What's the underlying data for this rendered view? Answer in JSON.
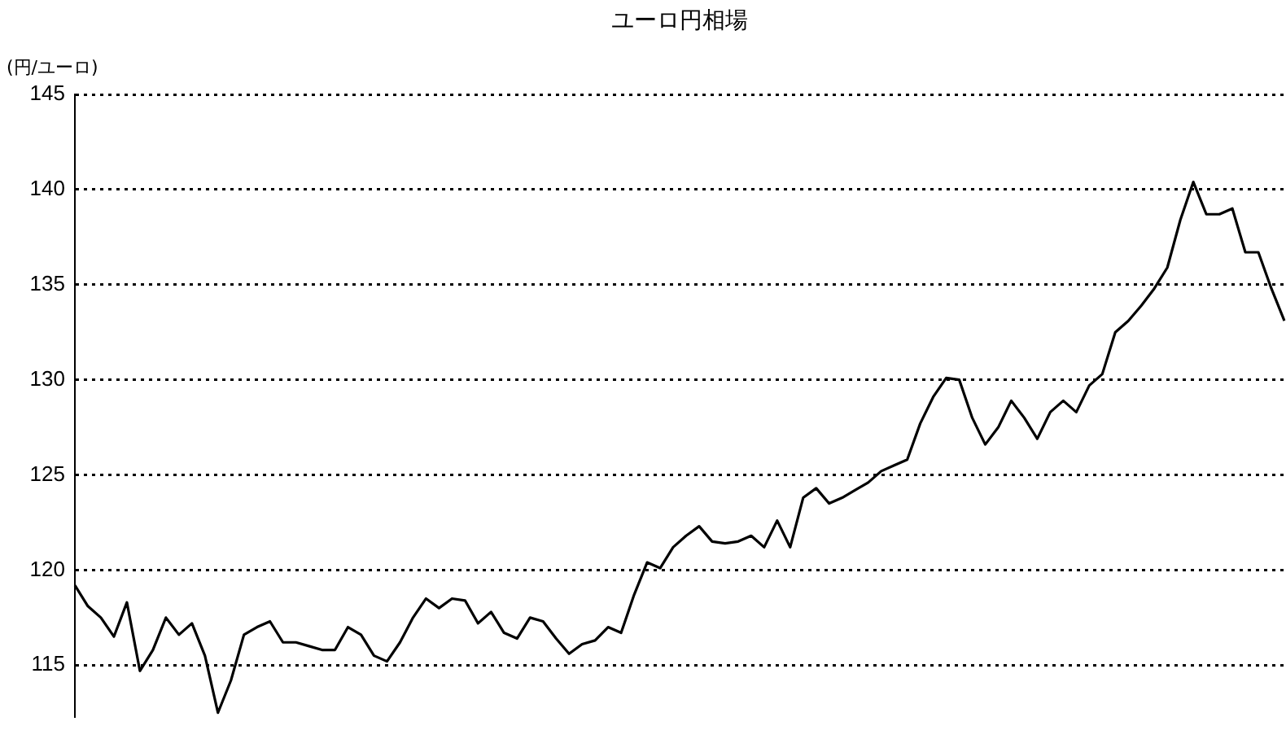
{
  "chart_data": {
    "type": "line",
    "title": "ユーロ円相場",
    "ylabel": "(円/ユーロ)",
    "categories": [
      null,
      null,
      null,
      null,
      null,
      null,
      null,
      null,
      null,
      null,
      null,
      null,
      null,
      null,
      null,
      null,
      null,
      null,
      null,
      null,
      null,
      null,
      null,
      null,
      null,
      null,
      null,
      null,
      null,
      null,
      null,
      null,
      null,
      null,
      null,
      null,
      null,
      null,
      null,
      null,
      null,
      null,
      null,
      null,
      null,
      null,
      null,
      null,
      null,
      null,
      null,
      null,
      null,
      null,
      null,
      null,
      null,
      null,
      null,
      null,
      null,
      null,
      null,
      null,
      null,
      null,
      null,
      null,
      null,
      null,
      null,
      null,
      null,
      null,
      null,
      null,
      null,
      null,
      null,
      null,
      null,
      null,
      null,
      null,
      null,
      null,
      null,
      null,
      null,
      null,
      null,
      null,
      null,
      null
    ],
    "series": [
      {
        "color": "#000000",
        "values": [
          119.2,
          118.1,
          117.5,
          116.5,
          118.3,
          114.7,
          115.8,
          117.5,
          116.6,
          117.2,
          115.5,
          112.5,
          114.2,
          116.6,
          117,
          117.3,
          116.2,
          116.2,
          116,
          115.8,
          115.8,
          117,
          116.6,
          115.5,
          115.2,
          116.2,
          117.5,
          118.5,
          118,
          118.5,
          118.4,
          117.2,
          117.8,
          116.7,
          116.4,
          117.5,
          117.3,
          116.4,
          115.6,
          116.1,
          116.3,
          117,
          116.7,
          118.7,
          120.4,
          120.1,
          121.2,
          121.8,
          122.3,
          121.5,
          121.4,
          121.5,
          121.8,
          121.2,
          122.6,
          121.2,
          123.8,
          124.3,
          123.5,
          123.8,
          124.2,
          124.6,
          125.2,
          125.5,
          125.8,
          127.7,
          129.1,
          130.1,
          130,
          128,
          126.6,
          127.5,
          128.9,
          128,
          126.9,
          128.3,
          128.9,
          128.3,
          129.7,
          130.3,
          132.5,
          133.1,
          133.9,
          134.8,
          135.9,
          138.4,
          140.4,
          138.7,
          138.7,
          139,
          136.7,
          136.7,
          134.8,
          133.1
        ]
      }
    ],
    "ylim": [
      112.3,
      145
    ],
    "yticks": [
      115,
      120,
      125,
      130,
      135,
      140,
      145
    ],
    "grid": "y",
    "line_style": "solid",
    "marker": "none",
    "tick_labels": "y",
    "legend": false
  }
}
